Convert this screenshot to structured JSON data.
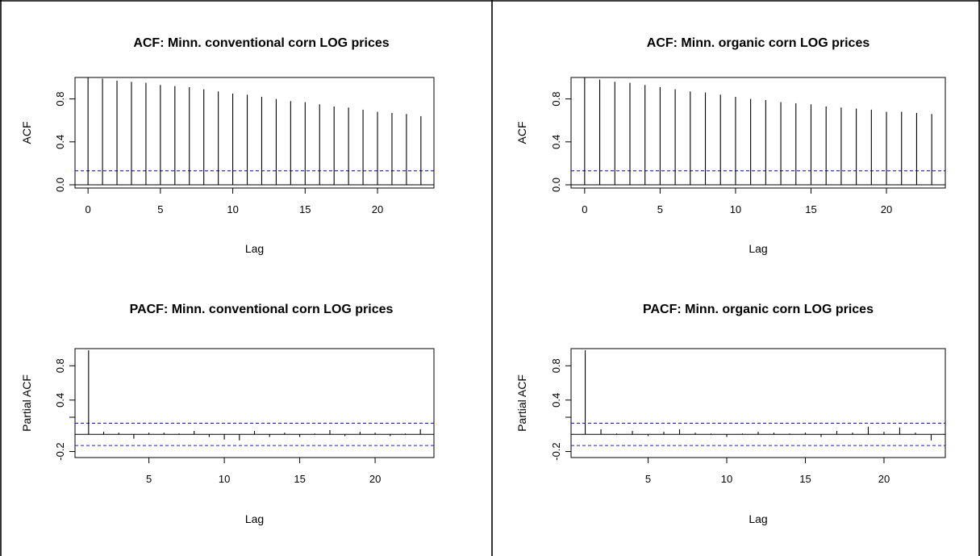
{
  "chart_data": [
    {
      "type": "bar",
      "kind": "acf",
      "title": "ACF: Minn. conventional corn LOG  prices",
      "xlabel": "Lag",
      "ylabel": "ACF",
      "xlim": [
        -0.9,
        23.9
      ],
      "ylim": [
        -0.03,
        1.0
      ],
      "xticks": [
        0,
        5,
        10,
        15,
        20
      ],
      "yticks": [
        0.0,
        0.4,
        0.8
      ],
      "ytick_labels": [
        "0.0",
        "0.4",
        "0.8"
      ],
      "ci": [
        0.13
      ],
      "lags": [
        0,
        1,
        2,
        3,
        4,
        5,
        6,
        7,
        8,
        9,
        10,
        11,
        12,
        13,
        14,
        15,
        16,
        17,
        18,
        19,
        20,
        21,
        22,
        23
      ],
      "values": [
        1.0,
        0.99,
        0.97,
        0.96,
        0.95,
        0.93,
        0.92,
        0.91,
        0.89,
        0.87,
        0.85,
        0.84,
        0.82,
        0.8,
        0.78,
        0.77,
        0.75,
        0.73,
        0.72,
        0.7,
        0.68,
        0.67,
        0.66,
        0.64
      ]
    },
    {
      "type": "bar",
      "kind": "acf",
      "title": "ACF: Minn. organic corn LOG prices",
      "xlabel": "Lag",
      "ylabel": "ACF",
      "xlim": [
        -0.9,
        23.9
      ],
      "ylim": [
        -0.03,
        1.0
      ],
      "xticks": [
        0,
        5,
        10,
        15,
        20
      ],
      "yticks": [
        0.0,
        0.4,
        0.8
      ],
      "ytick_labels": [
        "0.0",
        "0.4",
        "0.8"
      ],
      "ci": [
        0.13
      ],
      "lags": [
        0,
        1,
        2,
        3,
        4,
        5,
        6,
        7,
        8,
        9,
        10,
        11,
        12,
        13,
        14,
        15,
        16,
        17,
        18,
        19,
        20,
        21,
        22,
        23
      ],
      "values": [
        1.0,
        0.98,
        0.96,
        0.95,
        0.93,
        0.91,
        0.89,
        0.87,
        0.86,
        0.84,
        0.82,
        0.8,
        0.79,
        0.77,
        0.76,
        0.75,
        0.73,
        0.72,
        0.71,
        0.7,
        0.68,
        0.68,
        0.67,
        0.66
      ]
    },
    {
      "type": "bar",
      "kind": "pacf",
      "title": "PACF: Minn. conventional corn LOG prices",
      "xlabel": "Lag",
      "ylabel": "Partial ACF",
      "xlim": [
        0.1,
        23.9
      ],
      "ylim": [
        -0.27,
        1.0
      ],
      "xticks": [
        5,
        10,
        15,
        20
      ],
      "yticks": [
        -0.2,
        0.2,
        0.4,
        0.8
      ],
      "ytick_labels": [
        "-0.2",
        "",
        "0.4",
        "0.8"
      ],
      "ci": [
        0.13,
        -0.13
      ],
      "lags": [
        1,
        2,
        3,
        4,
        5,
        6,
        7,
        8,
        9,
        10,
        11,
        12,
        13,
        14,
        15,
        16,
        17,
        18,
        19,
        20,
        21,
        22,
        23
      ],
      "values": [
        0.98,
        0.03,
        0.02,
        -0.05,
        0.02,
        0.02,
        0.01,
        0.04,
        -0.03,
        -0.06,
        -0.07,
        0.04,
        -0.03,
        0.02,
        -0.03,
        0.01,
        0.05,
        -0.02,
        0.03,
        0.02,
        -0.02,
        0.01,
        0.06
      ]
    },
    {
      "type": "bar",
      "kind": "pacf",
      "title": "PACF: Minn. organic corn LOG  prices",
      "xlabel": "Lag",
      "ylabel": "Partial ACF",
      "xlim": [
        0.1,
        23.9
      ],
      "ylim": [
        -0.27,
        1.0
      ],
      "xticks": [
        5,
        10,
        15,
        20
      ],
      "yticks": [
        -0.2,
        0.2,
        0.4,
        0.8
      ],
      "ytick_labels": [
        "-0.2",
        "",
        "0.4",
        "0.8"
      ],
      "ci": [
        0.13,
        -0.13
      ],
      "lags": [
        1,
        2,
        3,
        4,
        5,
        6,
        7,
        8,
        9,
        10,
        11,
        12,
        13,
        14,
        15,
        16,
        17,
        18,
        19,
        20,
        21,
        22,
        23
      ],
      "values": [
        0.98,
        0.06,
        0.01,
        0.04,
        -0.02,
        0.03,
        0.06,
        0.02,
        0.01,
        -0.03,
        0.01,
        0.03,
        0.02,
        0.01,
        0.02,
        -0.03,
        0.04,
        0.02,
        0.09,
        0.03,
        0.08,
        0.02,
        -0.07
      ]
    }
  ]
}
